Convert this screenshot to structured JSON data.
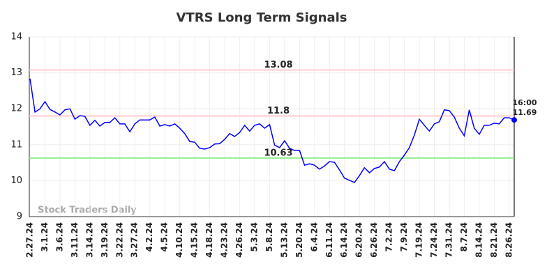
{
  "chart_data": {
    "type": "line",
    "title": "VTRS Long Term Signals",
    "watermark": "Stock Traders Daily",
    "time_label": "16:00",
    "color": "#0000ff",
    "categories": [
      "2.27.24",
      null,
      null,
      "3.1.24",
      null,
      null,
      "3.6.24",
      null,
      null,
      "3.11.24",
      null,
      null,
      "3.14.24",
      null,
      null,
      "3.19.24",
      null,
      null,
      "3.22.24",
      null,
      null,
      "3.27.24",
      null,
      null,
      "4.2.24",
      null,
      null,
      "4.5.24",
      null,
      null,
      "4.10.24",
      null,
      null,
      "4.15.24",
      null,
      null,
      "4.18.24",
      null,
      null,
      "4.23.24",
      null,
      null,
      "4.26.24",
      null,
      null,
      "5.3.24",
      null,
      null,
      "5.8.24",
      null,
      null,
      "5.13.24",
      null,
      null,
      "5.20.24",
      null,
      null,
      "6.4.24",
      null,
      null,
      "6.11.24",
      null,
      null,
      "6.14.24",
      null,
      null,
      "6.20.24",
      null,
      null,
      "6.26.24",
      null,
      null,
      "7.2.24",
      null,
      null,
      "7.9.24",
      null,
      null,
      "7.19.24",
      null,
      null,
      "7.24.24",
      null,
      null,
      "7.31.24",
      null,
      null,
      "8.7.24",
      null,
      null,
      "8.14.24",
      null,
      null,
      "8.21.24",
      null,
      null,
      "8.26.24",
      null
    ],
    "values": [
      12.84,
      11.91,
      12.0,
      12.2,
      11.98,
      11.91,
      11.83,
      11.97,
      12.0,
      11.71,
      11.81,
      11.79,
      11.54,
      11.68,
      11.52,
      11.62,
      11.62,
      11.75,
      11.58,
      11.58,
      11.36,
      11.58,
      11.69,
      11.69,
      11.69,
      11.77,
      11.52,
      11.56,
      11.52,
      11.58,
      11.46,
      11.31,
      11.09,
      11.07,
      10.9,
      10.88,
      10.92,
      11.02,
      11.03,
      11.15,
      11.31,
      11.23,
      11.34,
      11.54,
      11.38,
      11.54,
      11.58,
      11.46,
      11.56,
      10.99,
      10.92,
      11.11,
      10.9,
      10.84,
      10.84,
      10.43,
      10.47,
      10.43,
      10.32,
      10.41,
      10.53,
      10.51,
      10.3,
      10.07,
      10.01,
      9.95,
      10.14,
      10.36,
      10.22,
      10.34,
      10.38,
      10.53,
      10.32,
      10.28,
      10.53,
      10.71,
      10.92,
      11.27,
      11.71,
      11.54,
      11.38,
      11.58,
      11.64,
      11.97,
      11.95,
      11.77,
      11.46,
      11.25,
      11.97,
      11.46,
      11.29,
      11.54,
      11.54,
      11.6,
      11.58,
      11.75,
      11.75,
      11.69
    ],
    "hlines": [
      {
        "value": 13.08,
        "color": "#ffcccc",
        "label_color": "#8b0000"
      },
      {
        "value": 11.8,
        "color": "#ffcccc",
        "label_color": "#8b0000"
      },
      {
        "value": 10.63,
        "color": "#90ee90",
        "label_color": "#006400"
      }
    ],
    "ylim": [
      9,
      14
    ],
    "yticks": [
      9,
      10,
      11,
      12,
      13,
      14
    ],
    "grid": true
  }
}
